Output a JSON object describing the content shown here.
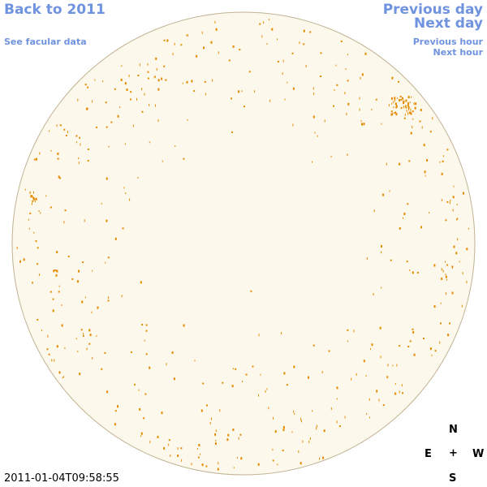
{
  "links": {
    "back": "Back to 2011",
    "previous_day": "Previous day",
    "next_day": "Next day",
    "facular": "See facular data",
    "previous_hour": "Previous hour",
    "next_hour": "Next hour"
  },
  "timestamp": "2011-01-04T09:58:55",
  "compass": {
    "north": "N",
    "east": "E",
    "center": "+",
    "west": "W",
    "south": "S"
  }
}
